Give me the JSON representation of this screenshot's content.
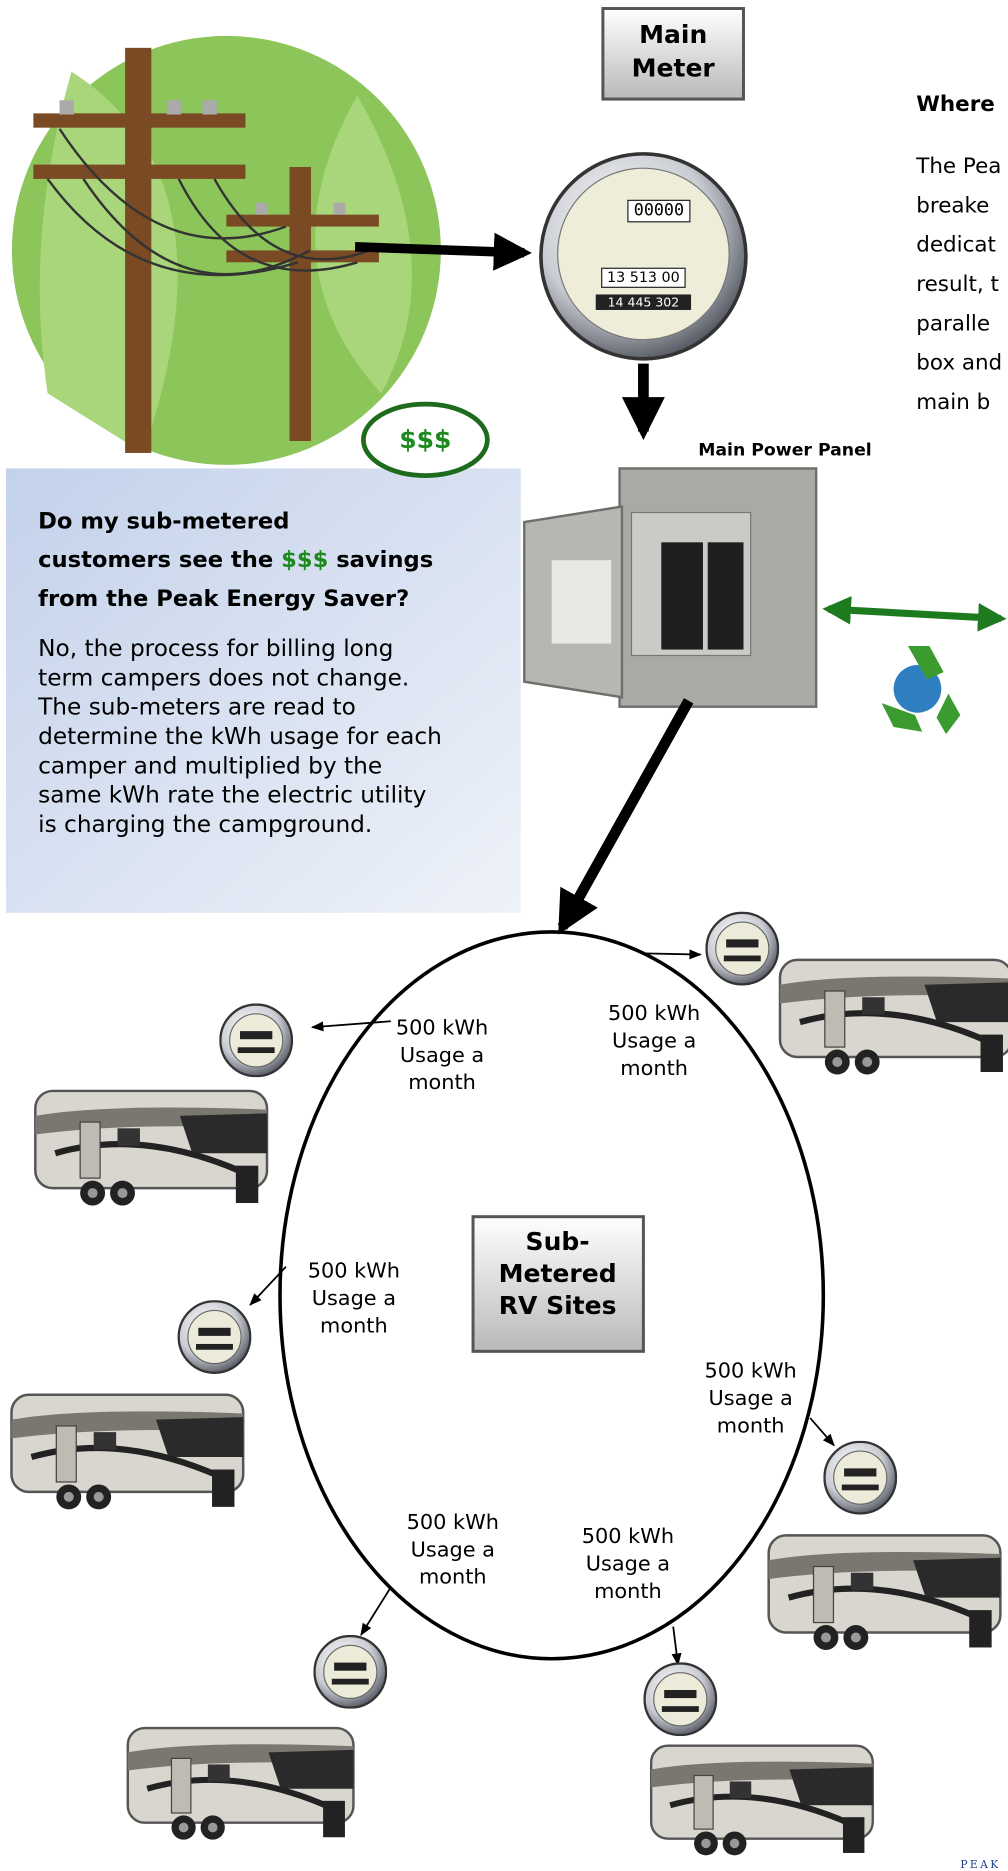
{
  "main_meter": {
    "label_lines": [
      "Main",
      "Meter"
    ],
    "dial": "00000",
    "reading_1": "13 513 00",
    "reading_2": "14 445 302"
  },
  "main_power_panel": {
    "label": "Main Power Panel"
  },
  "money_badge": {
    "text": "$$$"
  },
  "faq": {
    "question_line_1": "Do my sub-metered",
    "question_line_2_before": "customers see the ",
    "question_line_2_highlight": "$$$",
    "question_line_2_after": " savings",
    "question_line_3": "from the Peak Energy Saver?",
    "answer_lines": [
      "No, the process for billing long",
      "term campers does not change.",
      "The sub-meters are read to",
      "determine the kWh usage for each",
      "camper and multiplied by the",
      "same kWh rate the electric utility",
      "is charging the campground."
    ]
  },
  "side_text": {
    "heading": "Where",
    "lines": [
      "The Pea",
      "breake",
      "dedicat",
      "result, t",
      "paralle",
      "box and",
      "main b"
    ]
  },
  "center": {
    "lines": [
      "Sub-",
      "Metered",
      "RV Sites"
    ]
  },
  "sites": [
    {
      "lines": [
        "500 kWh",
        "Usage a",
        "month"
      ]
    },
    {
      "lines": [
        "500 kWh",
        "Usage a",
        "month"
      ]
    },
    {
      "lines": [
        "500 kWh",
        "Usage a",
        "month"
      ]
    },
    {
      "lines": [
        "500 kWh",
        "Usage a",
        "month"
      ]
    },
    {
      "lines": [
        "500 kWh",
        "Usage a",
        "month"
      ]
    },
    {
      "lines": [
        "500 kWh",
        "Usage a",
        "month"
      ]
    }
  ],
  "logo": {
    "text": "PEAK"
  }
}
